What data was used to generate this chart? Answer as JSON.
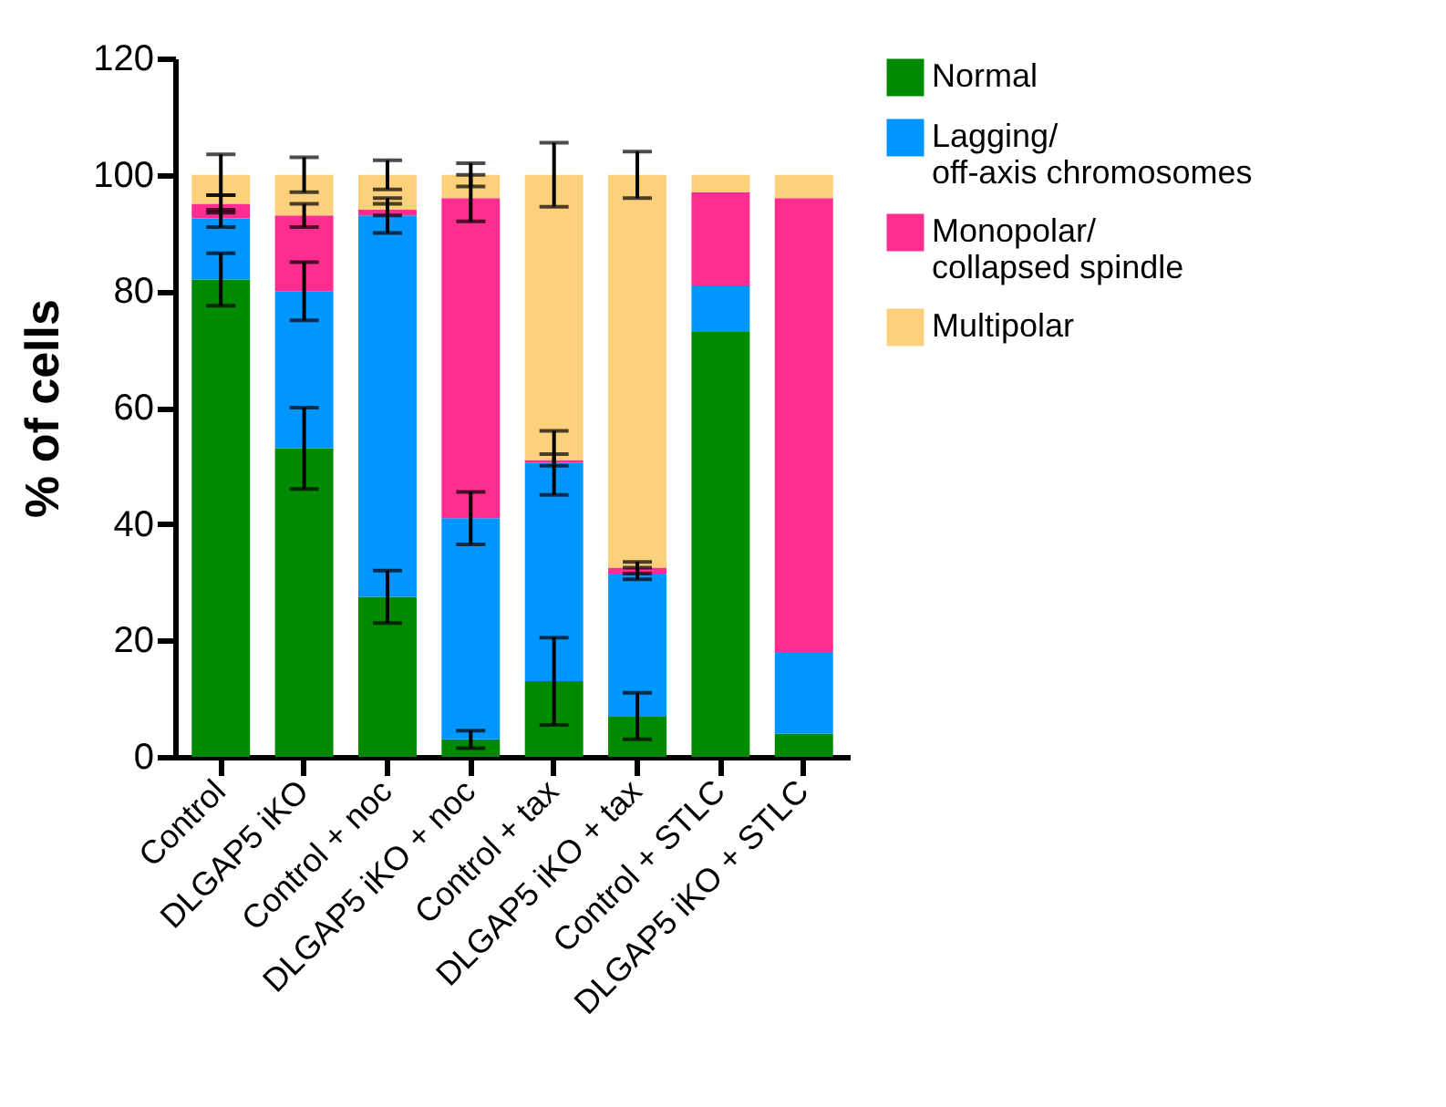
{
  "chart_data": {
    "type": "bar",
    "stacked": true,
    "ylabel": "% of cells",
    "categories": [
      "Control",
      "DLGAP5 iKO",
      "Control + noc",
      "DLGAP5 iKO + noc",
      "Control + tax",
      "DLGAP5 iKO + tax",
      "Control + STLC",
      "DLGAP5 iKO + STLC"
    ],
    "series": [
      {
        "name": "Normal",
        "color": "#008a00",
        "values": [
          82,
          53,
          27.5,
          3,
          13,
          7,
          73,
          4
        ],
        "errors": [
          4.5,
          7,
          4.5,
          1.5,
          7.5,
          4,
          null,
          null
        ]
      },
      {
        "name": "Lagging/ off-axis chromosomes",
        "color": "#0096ff",
        "values": [
          10.5,
          27,
          65.5,
          38,
          37.5,
          24.5,
          8,
          14
        ],
        "errors": [
          1.5,
          5,
          3,
          4.5,
          5.5,
          1,
          null,
          null
        ]
      },
      {
        "name": "Monopolar/ collapsed spindle",
        "color": "#ff2d8f",
        "values": [
          2.5,
          13,
          1,
          55,
          0.5,
          1,
          16,
          78
        ],
        "errors": [
          1.5,
          2,
          1,
          4,
          1,
          1,
          null,
          null
        ]
      },
      {
        "name": "Multipolar",
        "color": "#fdd17c",
        "values": [
          5,
          7,
          6,
          4,
          49,
          67.5,
          3,
          4
        ],
        "errors": [
          3.5,
          3,
          2.5,
          2,
          5.5,
          4,
          null,
          null
        ]
      }
    ],
    "ylim": [
      0,
      120
    ],
    "yticks": [
      0,
      20,
      40,
      60,
      80,
      100,
      120
    ],
    "legend": "right",
    "grid": false
  }
}
